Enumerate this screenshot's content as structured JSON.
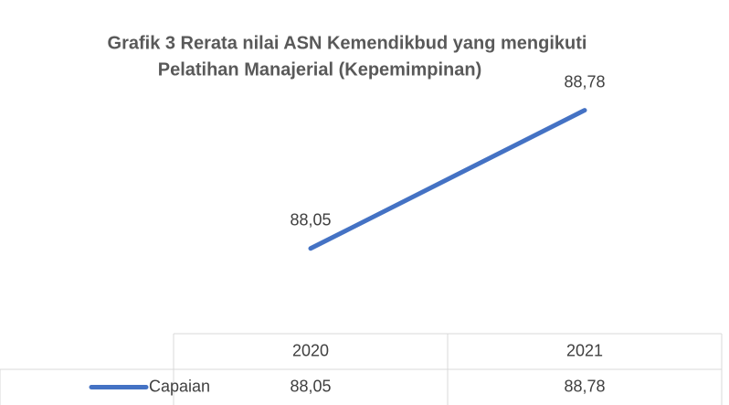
{
  "chart_data": {
    "type": "line",
    "title": [
      "Grafik 3 Rerata nilai ASN Kemendikbud yang mengikuti",
      "Pelatihan Manajerial (Kepemimpinan)"
    ],
    "categories": [
      "2020",
      "2021"
    ],
    "series": [
      {
        "name": "Capaian",
        "color": "#4472c4",
        "values": [
          88.05,
          88.78
        ],
        "value_labels": [
          "88,05",
          "88,78"
        ]
      }
    ],
    "ylim": [
      87.6,
      89.0
    ],
    "data_table": true
  }
}
